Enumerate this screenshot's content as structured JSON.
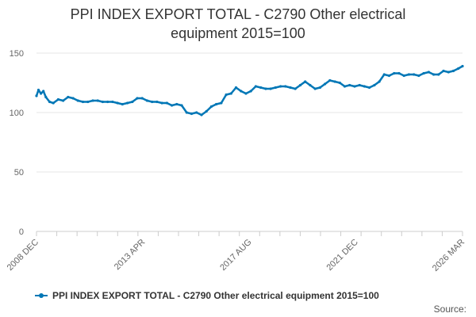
{
  "chart_data": {
    "type": "line",
    "title_line1": "PPI INDEX EXPORT TOTAL - C2790 Other electrical",
    "title_line2": "equipment 2015=100",
    "xlabel": "",
    "ylabel": "",
    "ylim": [
      0,
      150
    ],
    "yticks": [
      0,
      50,
      100,
      150
    ],
    "x_range": [
      "2008 DEC",
      "2026 MAR"
    ],
    "x_tick_labels": [
      "2008 DEC",
      "2013 APR",
      "2017 AUG",
      "2021 DEC",
      "2026 MAR"
    ],
    "grid": true,
    "legend_position": "bottom",
    "series": [
      {
        "name": "PPI INDEX EXPORT TOTAL - C2790 Other electrical equipment 2015=100",
        "color": "#0077b6",
        "x": [
          2008.92,
          2009.0,
          2009.1,
          2009.2,
          2009.3,
          2009.45,
          2009.6,
          2009.8,
          2010.0,
          2010.2,
          2010.4,
          2010.6,
          2010.8,
          2011.0,
          2011.2,
          2011.4,
          2011.6,
          2011.8,
          2012.0,
          2012.2,
          2012.4,
          2012.6,
          2012.8,
          2013.0,
          2013.2,
          2013.4,
          2013.6,
          2013.8,
          2014.0,
          2014.2,
          2014.4,
          2014.6,
          2014.8,
          2015.0,
          2015.2,
          2015.4,
          2015.6,
          2015.8,
          2016.0,
          2016.2,
          2016.4,
          2016.6,
          2016.8,
          2017.0,
          2017.2,
          2017.4,
          2017.6,
          2017.8,
          2018.0,
          2018.2,
          2018.4,
          2018.6,
          2018.8,
          2019.0,
          2019.2,
          2019.4,
          2019.6,
          2019.8,
          2020.0,
          2020.2,
          2020.4,
          2020.6,
          2020.8,
          2021.0,
          2021.2,
          2021.4,
          2021.6,
          2021.8,
          2022.0,
          2022.2,
          2022.4,
          2022.6,
          2022.8,
          2023.0,
          2023.2,
          2023.4,
          2023.6,
          2023.8,
          2024.0,
          2024.2,
          2024.4,
          2024.6,
          2024.8,
          2025.0,
          2025.2,
          2025.4,
          2025.6,
          2025.8,
          2026.0,
          2026.17
        ],
        "values": [
          114,
          119,
          116,
          118,
          113,
          109,
          108,
          111,
          110,
          113,
          112,
          110,
          109,
          109,
          110,
          110,
          109,
          109,
          109,
          108,
          107,
          108,
          109,
          112,
          112,
          110,
          109,
          109,
          108,
          108,
          106,
          107,
          106,
          100,
          99,
          100,
          98,
          101,
          105,
          107,
          108,
          115,
          116,
          121,
          118,
          116,
          118,
          122,
          121,
          120,
          120,
          121,
          122,
          122,
          121,
          120,
          123,
          126,
          123,
          120,
          121,
          124,
          127,
          126,
          125,
          122,
          123,
          122,
          123,
          122,
          121,
          123,
          126,
          132,
          131,
          133,
          133,
          131,
          132,
          132,
          131,
          133,
          134,
          132,
          132,
          135,
          134,
          135,
          137,
          139
        ]
      }
    ]
  },
  "legend": {
    "label": "PPI INDEX EXPORT TOTAL - C2790 Other electrical equipment 2015=100",
    "color": "#0077b6"
  },
  "source_label": "Source:"
}
